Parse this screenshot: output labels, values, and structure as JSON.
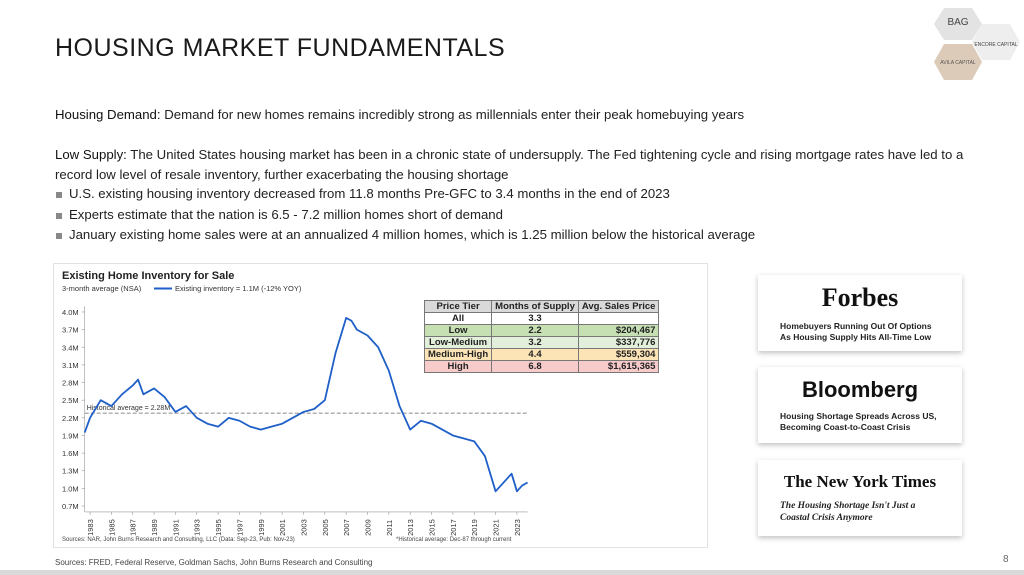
{
  "header": {
    "title": "HOUSING MARKET FUNDAMENTALS",
    "logos": [
      "BAG",
      "ENCORE CAPITAL",
      "AVILA CAPITAL"
    ]
  },
  "body": {
    "demand": {
      "label": "Housing Demand:",
      "text": "Demand for new homes remains incredibly strong as millennials enter their peak homebuying years"
    },
    "supply": {
      "label": "Low Supply:",
      "text": "The United States housing market has been in a chronic state of undersupply. The Fed tightening cycle and rising mortgage rates have led to a record low level of resale inventory, further exacerbating the housing shortage"
    },
    "bullets": [
      "U.S. existing housing inventory decreased from 11.8 months Pre-GFC to 3.4 months in the end of 2023",
      "Experts estimate that the nation is 6.5 - 7.2 million homes short of demand",
      "January existing home sales were at an annualized 4 million homes, which is 1.25 million below the historical average"
    ]
  },
  "chart_data": {
    "type": "line",
    "title": "Existing Home Inventory for Sale",
    "subtitle": "3-month average (NSA)",
    "x": [
      1982.5,
      1983,
      1984,
      1985,
      1986,
      1987,
      1987.5,
      1988,
      1989,
      1990,
      1991,
      1992,
      1993,
      1994,
      1995,
      1996,
      1997,
      1998,
      1999,
      2000,
      2001,
      2002,
      2003,
      2004,
      2005,
      2006,
      2007,
      2007.5,
      2008,
      2009,
      2010,
      2011,
      2012,
      2013,
      2014,
      2015,
      2016,
      2017,
      2018,
      2019,
      2020,
      2021,
      2022,
      2022.5,
      2023,
      2023.5,
      2024
    ],
    "series": [
      {
        "name": "Existing inventory = 1.1M (-12% YOY)",
        "color": "#1f5fc8",
        "values": [
          1.95,
          2.2,
          2.5,
          2.4,
          2.6,
          2.75,
          2.85,
          2.6,
          2.7,
          2.55,
          2.3,
          2.4,
          2.2,
          2.1,
          2.05,
          2.2,
          2.15,
          2.05,
          2.0,
          2.05,
          2.1,
          2.2,
          2.3,
          2.35,
          2.5,
          3.3,
          3.9,
          3.85,
          3.7,
          3.6,
          3.4,
          3.0,
          2.4,
          2.0,
          2.15,
          2.1,
          2.0,
          1.9,
          1.85,
          1.8,
          1.55,
          0.95,
          1.15,
          1.25,
          0.95,
          1.05,
          1.1
        ]
      }
    ],
    "xlim": [
      1982.5,
      2024
    ],
    "xticks": [
      1983,
      1985,
      1987,
      1989,
      1991,
      1993,
      1995,
      1997,
      1999,
      2001,
      2003,
      2005,
      2007,
      2009,
      2011,
      2013,
      2015,
      2017,
      2019,
      2021,
      2023
    ],
    "ylim": [
      0.6,
      4.1
    ],
    "yticks": [
      {
        "value": 0.7,
        "label": "0.7M"
      },
      {
        "value": 1.0,
        "label": "1.0M"
      },
      {
        "value": 1.3,
        "label": "1.3M"
      },
      {
        "value": 1.6,
        "label": "1.6M"
      },
      {
        "value": 1.9,
        "label": "1.9M"
      },
      {
        "value": 2.2,
        "label": "2.2M"
      },
      {
        "value": 2.5,
        "label": "2.5M"
      },
      {
        "value": 2.8,
        "label": "2.8M"
      },
      {
        "value": 3.1,
        "label": "3.1M"
      },
      {
        "value": 3.4,
        "label": "3.4M"
      },
      {
        "value": 3.7,
        "label": "3.7M"
      },
      {
        "value": 4.0,
        "label": "4.0M"
      }
    ],
    "reference_line": {
      "value": 2.28,
      "label": "Historical average = 2.28M"
    },
    "source": "Sources: NAR, John Burns Research and Consulting, LLC (Data: Sep-23, Pub: Nov-23)",
    "footnote": "*Historical average: Dec-87 through current"
  },
  "table": {
    "header": [
      "Price Tier",
      "Months of Supply",
      "Avg. Sales Price"
    ],
    "rows": [
      [
        "All",
        "3.3",
        ""
      ],
      [
        "Low",
        "2.2",
        "$204,467"
      ],
      [
        "Low-Medium",
        "3.2",
        "$337,776"
      ],
      [
        "Medium-High",
        "4.4",
        "$559,304"
      ],
      [
        "High",
        "6.8",
        "$1,615,365"
      ]
    ]
  },
  "news": [
    {
      "outlet": "Forbes",
      "headline": "Homebuyers Running Out Of Options As Housing Supply Hits All-Time Low"
    },
    {
      "outlet": "Bloomberg",
      "headline": "Housing Shortage Spreads Across US, Becoming Coast-to-Coast Crisis"
    },
    {
      "outlet": "The New York Times",
      "headline": "The Housing Shortage Isn't Just a Coastal Crisis Anymore"
    }
  ],
  "footer": {
    "sources": "Sources: FRED, Federal Reserve, Goldman Sachs, John Burns Research and Consulting",
    "page": "8"
  }
}
